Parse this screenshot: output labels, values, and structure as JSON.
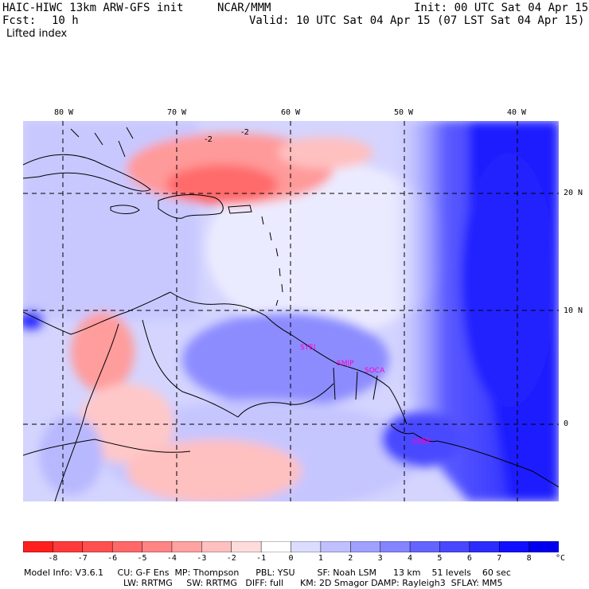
{
  "header": {
    "model_title": "HAIC-HIWC 13km ARW-GFS init",
    "agency": "NCAR/MMM",
    "init": "Init: 00 UTC Sat 04 Apr 15",
    "fcst_label": "Fcst:",
    "fcst_value": "10 h",
    "valid": "Valid: 10 UTC Sat 04 Apr 15 (07 LST Sat 04 Apr 15)",
    "field": "Lifted index"
  },
  "axes": {
    "lon_labels": [
      "80 W",
      "70 W",
      "60 W",
      "50 W",
      "40 W"
    ],
    "lat_labels": [
      "20 N",
      "10 N",
      "0"
    ]
  },
  "stations": [
    "SYEI",
    "SMJP",
    "SOCA",
    "SBBE"
  ],
  "contour_labels": [
    "-2",
    "-2"
  ],
  "colorbar": {
    "ticks": [
      "-8",
      "-7",
      "-6",
      "-5",
      "-4",
      "-3",
      "-2",
      "-1",
      "0",
      "1",
      "2",
      "3",
      "4",
      "5",
      "6",
      "7",
      "8"
    ],
    "unit": "°C",
    "colors": [
      "#ff1f1f",
      "#ff3a3a",
      "#ff5050",
      "#ff6868",
      "#ff8484",
      "#ffa2a2",
      "#ffc0c0",
      "#ffdcdc",
      "#ffffff",
      "#dcdcff",
      "#c0c0ff",
      "#a0a0ff",
      "#8484ff",
      "#6464ff",
      "#4848ff",
      "#2c2cff",
      "#1010ff",
      "#0000ee"
    ]
  },
  "footer": {
    "line1": "Model Info: V3.6.1     CU: G-F Ens  MP: Thompson      PBL: YSU        SF: Noah LSM      13 km    51 levels    60 sec",
    "line2": "LW: RRTMG     SW: RRTMG   DIFF: full      KM: 2D Smagor DAMP: Rayleigh3  SFLAY: MM5"
  }
}
